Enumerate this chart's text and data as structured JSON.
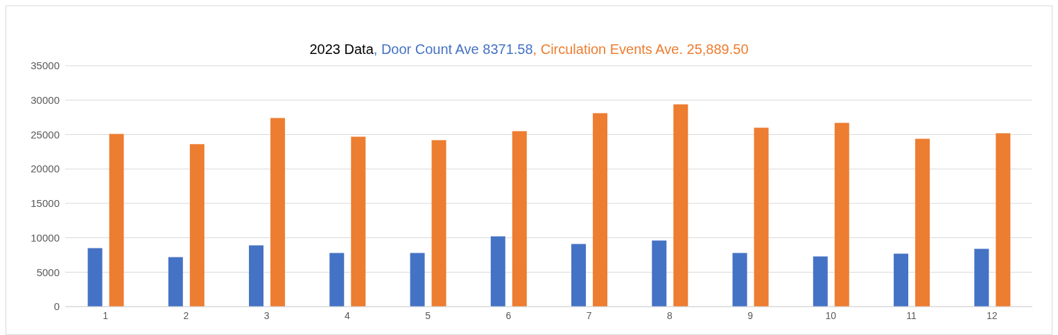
{
  "chart_data": {
    "type": "bar",
    "title": "2023 Data",
    "categories": [
      "1",
      "2",
      "3",
      "4",
      "5",
      "6",
      "7",
      "8",
      "9",
      "10",
      "11",
      "12"
    ],
    "series": [
      {
        "name": ", Door Count Ave 8371.58",
        "color": "#4472c4",
        "values": [
          8500,
          7200,
          8900,
          7800,
          7800,
          10200,
          9100,
          9600,
          7800,
          7300,
          7700,
          8400
        ]
      },
      {
        "name": ", Circulation Events Ave. 25,889.50",
        "color": "#ed7d31",
        "values": [
          25100,
          23600,
          27400,
          24700,
          24200,
          25500,
          28100,
          29400,
          26000,
          26700,
          24400,
          25200
        ]
      }
    ],
    "ylim": [
      0,
      35000
    ],
    "yticks": [
      0,
      5000,
      10000,
      15000,
      20000,
      25000,
      30000,
      35000
    ],
    "grid": "y",
    "legend": "top"
  }
}
